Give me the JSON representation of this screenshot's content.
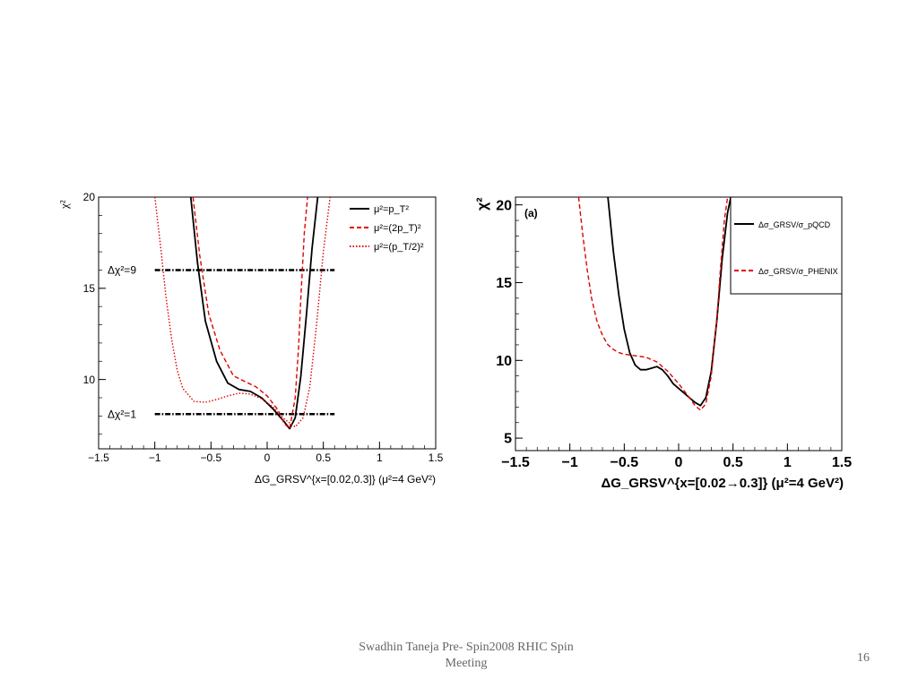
{
  "footer": {
    "line1": "Swadhin Taneja  Pre- Spin2008  RHIC Spin",
    "line2": "Meeting",
    "page_number": "16"
  },
  "chart_data": [
    {
      "type": "line",
      "ylabel": "χ²",
      "xlabel": "ΔG_GRSV^{x=[0.02,0.3]} (μ²=4 GeV²)",
      "xlim": [
        -1.5,
        1.5
      ],
      "ylim": [
        6.2,
        20
      ],
      "x_ticks": [
        "-1.5",
        "-1",
        "-0.5",
        "0",
        "0.5",
        "1",
        "1.5"
      ],
      "y_ticks": [
        "10",
        "15",
        "20"
      ],
      "legend_position": "top-right",
      "legend": [
        "μ²=p_T²",
        "μ²=(2p_T)²",
        "μ²=(p_T/2)²"
      ],
      "annotations": [
        {
          "text": "Δχ²=9",
          "y": 16
        },
        {
          "text": "Δχ²=1",
          "y": 8.1
        }
      ],
      "reference_lines": [
        {
          "label": "Δχ²=9",
          "y": 16,
          "x_range": [
            -1.0,
            0.6
          ],
          "color": "#000000"
        },
        {
          "label": "Δχ²=1",
          "y": 8.1,
          "x_range": [
            -1.0,
            0.6
          ],
          "color": "#000000"
        }
      ],
      "series": [
        {
          "name": "μ²=p_T²",
          "style": "solid",
          "color": "#000000",
          "x": [
            -0.68,
            -0.62,
            -0.55,
            -0.45,
            -0.35,
            -0.25,
            -0.15,
            -0.05,
            0.05,
            0.15,
            0.2,
            0.25,
            0.3,
            0.35,
            0.4,
            0.45
          ],
          "y": [
            20,
            16.4,
            13.2,
            11.0,
            9.8,
            9.45,
            9.35,
            9.0,
            8.4,
            7.7,
            7.3,
            7.9,
            10.2,
            13.6,
            17.2,
            20
          ]
        },
        {
          "name": "μ²=(2p_T)²",
          "style": "dashed",
          "color": "#e00000",
          "x": [
            -0.66,
            -0.6,
            -0.52,
            -0.42,
            -0.3,
            -0.2,
            -0.1,
            0,
            0.1,
            0.15,
            0.2,
            0.25,
            0.28,
            0.3,
            0.33,
            0.36
          ],
          "y": [
            20,
            16.8,
            13.6,
            11.6,
            10.2,
            9.9,
            9.6,
            9.1,
            8.3,
            7.6,
            7.3,
            9.0,
            11.8,
            14.5,
            18.0,
            20
          ]
        },
        {
          "name": "μ²=(p_T/2)²",
          "style": "dotted",
          "color": "#e00000",
          "x": [
            -1.0,
            -0.95,
            -0.9,
            -0.85,
            -0.8,
            -0.75,
            -0.65,
            -0.55,
            -0.45,
            -0.35,
            -0.25,
            -0.15,
            -0.05,
            0.05,
            0.15,
            0.25,
            0.32,
            0.38,
            0.44,
            0.5,
            0.56
          ],
          "y": [
            20,
            17.4,
            14.5,
            12.2,
            10.5,
            9.5,
            8.8,
            8.75,
            8.9,
            9.1,
            9.25,
            9.2,
            8.95,
            8.5,
            7.85,
            7.4,
            7.9,
            9.6,
            13.0,
            17.0,
            20
          ]
        }
      ]
    },
    {
      "type": "line",
      "panel_label": "(a)",
      "ylabel": "χ²",
      "xlabel": "ΔG_GRSV^{x=[0.02→0.3]} (μ²=4 GeV²)",
      "xlim": [
        -1.5,
        1.5
      ],
      "ylim": [
        4.2,
        20.5
      ],
      "x_ticks": [
        "-1.5",
        "-1",
        "-0.5",
        "0",
        "0.5",
        "1",
        "1.5"
      ],
      "y_ticks": [
        "5",
        "10",
        "15",
        "20"
      ],
      "legend_position": "top-right",
      "legend": [
        "Δσ_GRSV/σ_pQCD",
        "Δσ_GRSV/σ_PHENIX"
      ],
      "series": [
        {
          "name": "Δσ_GRSV/σ_pQCD",
          "style": "solid",
          "color": "#000000",
          "x": [
            -0.65,
            -0.6,
            -0.55,
            -0.5,
            -0.45,
            -0.4,
            -0.35,
            -0.3,
            -0.25,
            -0.2,
            -0.15,
            -0.1,
            -0.05,
            0,
            0.05,
            0.1,
            0.15,
            0.2,
            0.25,
            0.3,
            0.35,
            0.4,
            0.45,
            0.48
          ],
          "y": [
            20.5,
            17.0,
            14.2,
            12.0,
            10.5,
            9.7,
            9.4,
            9.4,
            9.5,
            9.6,
            9.4,
            9.0,
            8.5,
            8.2,
            7.9,
            7.6,
            7.3,
            7.1,
            7.6,
            9.3,
            12.5,
            16.5,
            19.5,
            20.5
          ]
        },
        {
          "name": "Δσ_GRSV/σ_PHENIX",
          "style": "dashed",
          "color": "#e00000",
          "x": [
            -0.92,
            -0.88,
            -0.84,
            -0.8,
            -0.75,
            -0.7,
            -0.65,
            -0.6,
            -0.55,
            -0.5,
            -0.45,
            -0.4,
            -0.3,
            -0.2,
            -0.1,
            0,
            0.1,
            0.15,
            0.2,
            0.25,
            0.3,
            0.35,
            0.38,
            0.42,
            0.45
          ],
          "y": [
            20.5,
            18.0,
            15.8,
            14.0,
            12.5,
            11.6,
            11.0,
            10.7,
            10.5,
            10.4,
            10.35,
            10.3,
            10.2,
            9.9,
            9.3,
            8.5,
            7.6,
            7.1,
            6.8,
            7.2,
            9.0,
            12.5,
            15.5,
            19.0,
            20.5
          ]
        }
      ]
    }
  ]
}
